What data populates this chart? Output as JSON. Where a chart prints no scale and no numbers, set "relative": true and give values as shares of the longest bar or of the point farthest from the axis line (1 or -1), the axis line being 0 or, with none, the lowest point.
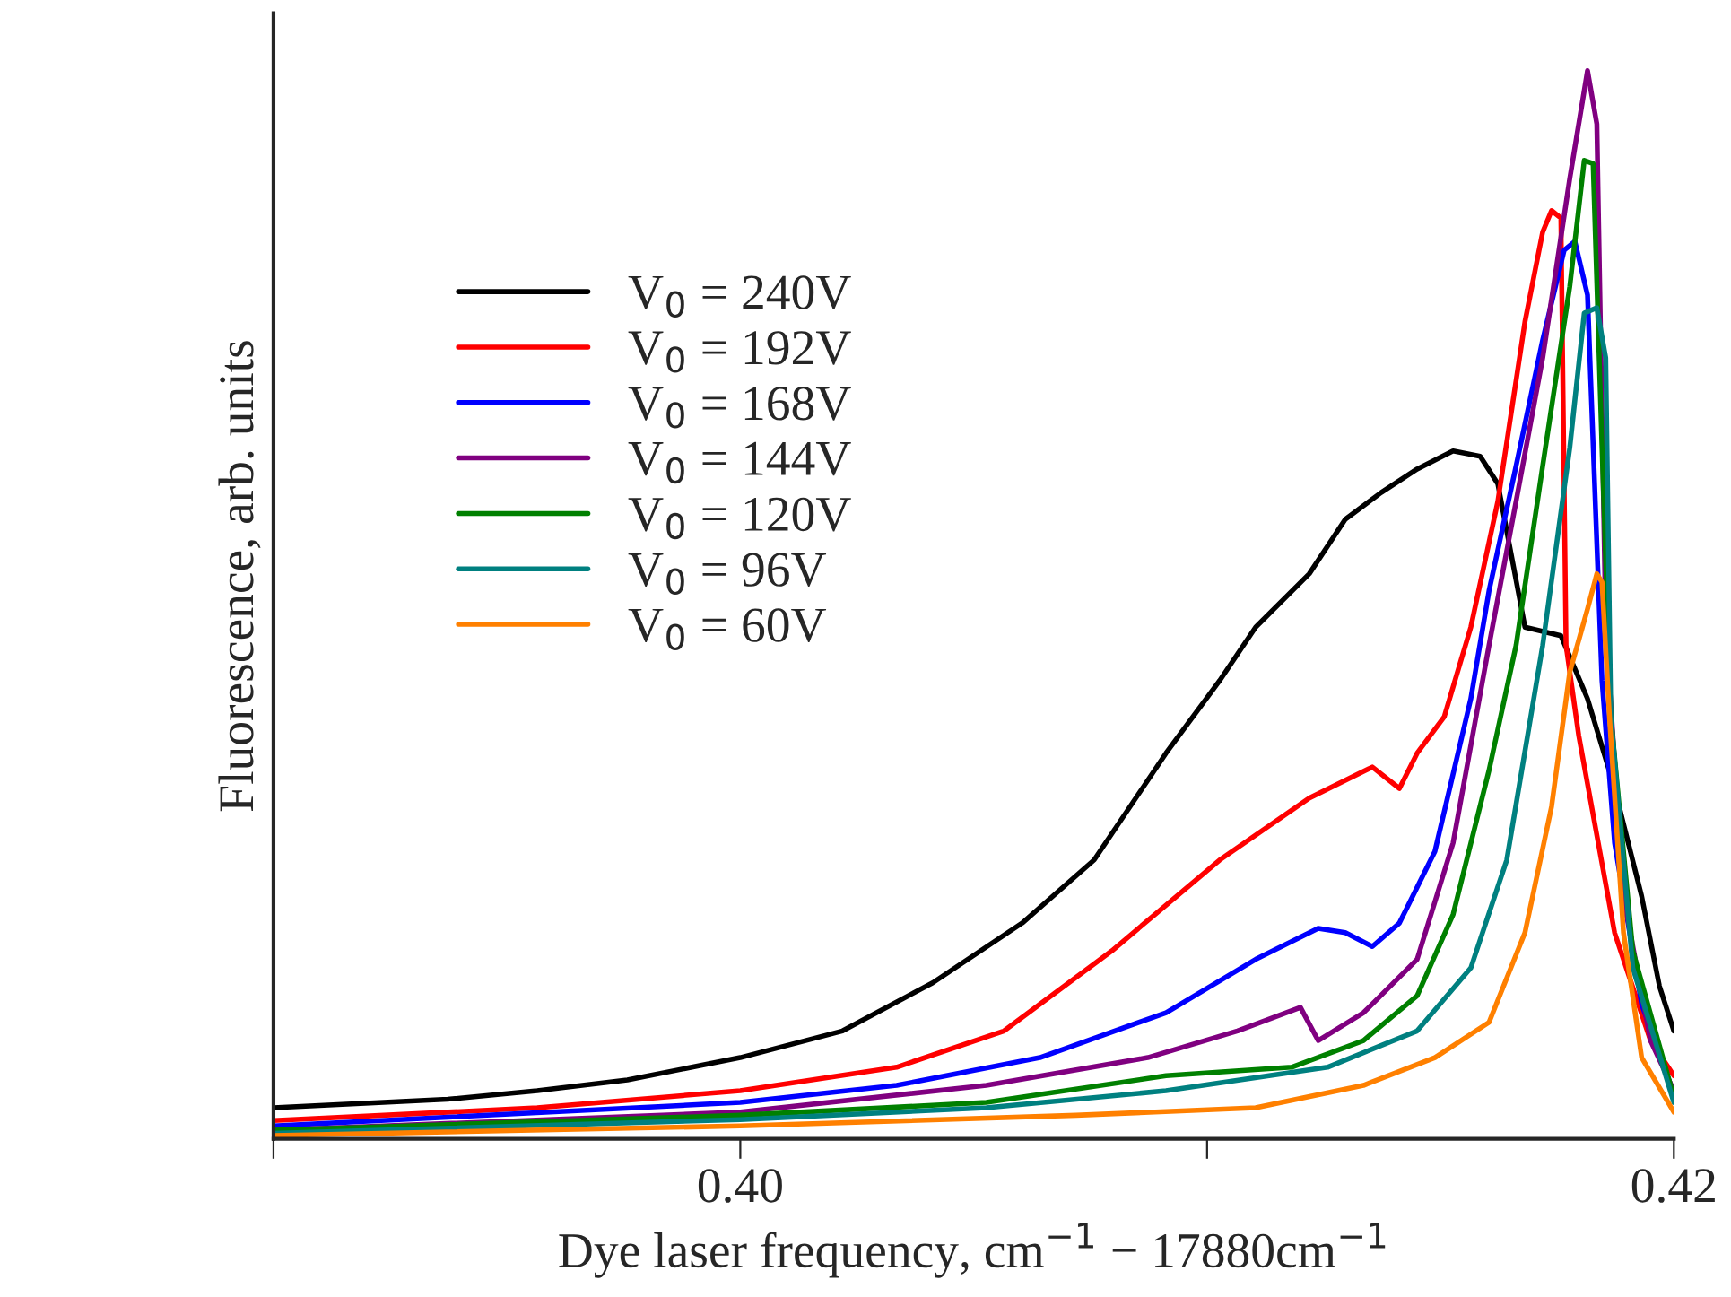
{
  "chart_data": {
    "type": "line",
    "relative": true,
    "xlabel": "Dye laser frequency, cm$^{−1}$ − 17880cm$^{−1}$",
    "ylabel": "Fluorescence, arb. units",
    "xlim": [
      0.39,
      0.42
    ],
    "xticks": [
      {
        "value": 0.39,
        "label": null
      },
      {
        "value": 0.4,
        "label": "0.40"
      },
      {
        "value": 0.41,
        "label": null
      },
      0.42
    ],
    "tick_labels": "x",
    "legend": "left",
    "grid": false,
    "series": [
      {
        "name": "V$_{0}$ = 240V",
        "color": "#000000",
        "x": [
          0.39,
          0.39373,
          0.39565,
          0.39758,
          0.4,
          0.40219,
          0.40412,
          0.40604,
          0.40758,
          0.40912,
          0.41027,
          0.41104,
          0.41219,
          0.41296,
          0.41373,
          0.4145,
          0.41527,
          0.41585,
          0.41623,
          0.41681,
          0.41758,
          0.41815,
          0.41873,
          0.41931,
          0.41969,
          0.42
        ],
        "values": [
          0.029,
          0.037,
          0.045,
          0.055,
          0.076,
          0.101,
          0.146,
          0.202,
          0.261,
          0.361,
          0.429,
          0.479,
          0.529,
          0.58,
          0.605,
          0.627,
          0.644,
          0.639,
          0.613,
          0.479,
          0.471,
          0.412,
          0.328,
          0.227,
          0.143,
          0.101
        ]
      },
      {
        "name": "V$_{0}$ = 192V",
        "color": "#ff0000",
        "x": [
          0.39,
          0.39565,
          0.4,
          0.40335,
          0.40565,
          0.40796,
          0.41027,
          0.41219,
          0.41354,
          0.41412,
          0.4145,
          0.41508,
          0.41565,
          0.41623,
          0.41681,
          0.41719,
          0.41738,
          0.41758,
          0.41769,
          0.41796,
          0.41873,
          0.4195,
          0.42
        ],
        "values": [
          0.017,
          0.029,
          0.045,
          0.067,
          0.101,
          0.176,
          0.261,
          0.319,
          0.348,
          0.328,
          0.361,
          0.395,
          0.479,
          0.597,
          0.765,
          0.849,
          0.869,
          0.862,
          0.462,
          0.378,
          0.193,
          0.092,
          0.059
        ]
      },
      {
        "name": "V$_{0}$ = 168V",
        "color": "#0000ff",
        "x": [
          0.39,
          0.4,
          0.40335,
          0.40642,
          0.40912,
          0.41104,
          0.41238,
          0.41296,
          0.41354,
          0.41412,
          0.41488,
          0.41565,
          0.41604,
          0.41662,
          0.41719,
          0.41765,
          0.41788,
          0.41815,
          0.41846,
          0.41873,
          0.41931,
          0.42
        ],
        "values": [
          0.012,
          0.034,
          0.05,
          0.076,
          0.118,
          0.168,
          0.197,
          0.193,
          0.18,
          0.202,
          0.269,
          0.412,
          0.513,
          0.63,
          0.748,
          0.832,
          0.84,
          0.79,
          0.429,
          0.277,
          0.126,
          0.042
        ]
      },
      {
        "name": "V$_{0}$ = 144V",
        "color": "#800080",
        "x": [
          0.39,
          0.4,
          0.40527,
          0.40873,
          0.41065,
          0.412,
          0.41238,
          0.41335,
          0.4145,
          0.41527,
          0.41604,
          0.41662,
          0.41719,
          0.41777,
          0.41815,
          0.41835,
          0.41854,
          0.41892,
          0.4195,
          0.42
        ],
        "values": [
          0.008,
          0.025,
          0.05,
          0.076,
          0.101,
          0.123,
          0.092,
          0.118,
          0.168,
          0.277,
          0.462,
          0.597,
          0.731,
          0.899,
          1.0,
          0.95,
          0.479,
          0.227,
          0.092,
          0.045
        ]
      },
      {
        "name": "V$_{0}$ = 120V",
        "color": "#008000",
        "x": [
          0.39,
          0.4,
          0.40527,
          0.40912,
          0.41181,
          0.41335,
          0.4145,
          0.41527,
          0.41604,
          0.41662,
          0.41719,
          0.41777,
          0.41808,
          0.41827,
          0.41846,
          0.41865,
          0.41912,
          0.42
        ],
        "values": [
          0.008,
          0.022,
          0.034,
          0.059,
          0.067,
          0.092,
          0.134,
          0.21,
          0.345,
          0.462,
          0.63,
          0.798,
          0.916,
          0.913,
          0.647,
          0.395,
          0.176,
          0.039
        ]
      },
      {
        "name": "V$_{0}$ = 96V",
        "color": "#008080",
        "x": [
          0.39,
          0.4,
          0.40527,
          0.40912,
          0.41258,
          0.4145,
          0.41565,
          0.41642,
          0.41719,
          0.41777,
          0.41808,
          0.41835,
          0.41854,
          0.41865,
          0.41912,
          0.42
        ],
        "values": [
          0.005,
          0.018,
          0.029,
          0.045,
          0.067,
          0.101,
          0.16,
          0.261,
          0.462,
          0.647,
          0.773,
          0.778,
          0.731,
          0.395,
          0.16,
          0.034
        ]
      },
      {
        "name": "V$_{0}$ = 60V",
        "color": "#ff8000",
        "x": [
          0.39,
          0.4,
          0.40719,
          0.41104,
          0.41335,
          0.41488,
          0.41604,
          0.41681,
          0.41738,
          0.41777,
          0.41815,
          0.41835,
          0.41846,
          0.41862,
          0.41892,
          0.41931,
          0.42
        ],
        "values": [
          0.003,
          0.012,
          0.022,
          0.029,
          0.05,
          0.076,
          0.109,
          0.193,
          0.311,
          0.437,
          0.496,
          0.529,
          0.521,
          0.395,
          0.193,
          0.076,
          0.025
        ]
      }
    ]
  }
}
